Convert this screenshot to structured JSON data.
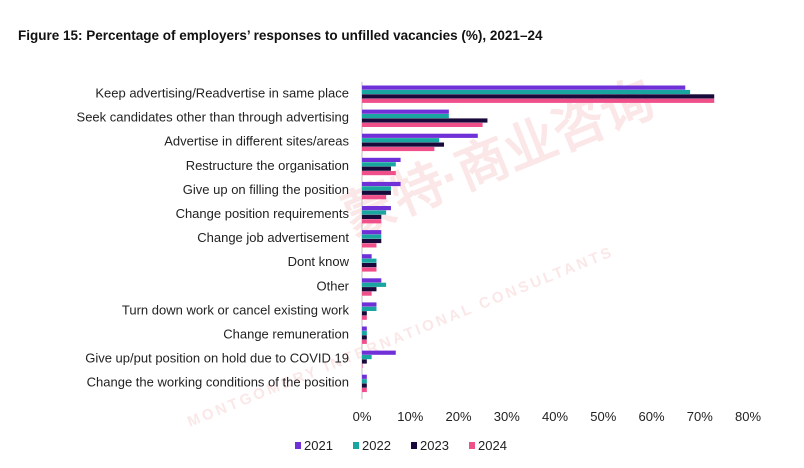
{
  "chart_data": {
    "type": "bar",
    "orientation": "horizontal",
    "title": "Figure 15: Percentage of employers’ responses to unfilled vacancies (%), 2021–24",
    "categories": [
      "Keep advertising/Readvertise in same place",
      "Seek candidates other than through advertising",
      "Advertise in different sites/areas",
      "Restructure the organisation",
      "Give up on filling the position",
      "Change position requirements",
      "Change job advertisement",
      "Dont know",
      "Other",
      "Turn down work or cancel existing work",
      "Change remuneration",
      "Give up/put position on hold due to COVID 19",
      "Change the working conditions of the position"
    ],
    "series": [
      {
        "name": "2021",
        "color": "#7030d8",
        "values": [
          67,
          18,
          24,
          8,
          8,
          6,
          4,
          2,
          4,
          3,
          1,
          7,
          1
        ]
      },
      {
        "name": "2022",
        "color": "#1aa6a0",
        "values": [
          68,
          18,
          16,
          7,
          6,
          5,
          4,
          3,
          5,
          3,
          1,
          2,
          1
        ]
      },
      {
        "name": "2023",
        "color": "#1a0a3c",
        "values": [
          73,
          26,
          17,
          6,
          6,
          4,
          4,
          3,
          3,
          1,
          1,
          1,
          1
        ]
      },
      {
        "name": "2024",
        "color": "#f0508a",
        "values": [
          73,
          25,
          15,
          7,
          5,
          4,
          3,
          3,
          2,
          1,
          1,
          0,
          1
        ]
      }
    ],
    "xlim": [
      0,
      80
    ],
    "xticks": [
      "0%",
      "10%",
      "20%",
      "30%",
      "40%",
      "50%",
      "60%",
      "70%",
      "80%"
    ],
    "legend_position": "bottom",
    "grid": false
  },
  "watermark": {
    "cn_text": "蒙特·商业咨询",
    "en_text": "MONTGOMERY INTERNATIONAL CONSULTANTS"
  }
}
